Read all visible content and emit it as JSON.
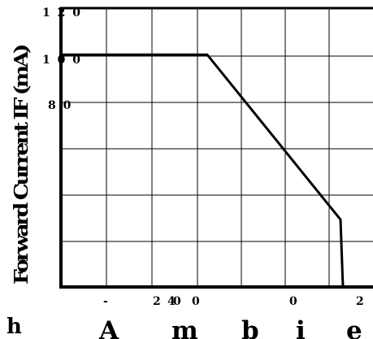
{
  "chart_data": {
    "type": "line",
    "ylabel": "Forward Current IF (mA)",
    "xlabel_fragments": [
      "h",
      "A",
      "m",
      "b",
      "i",
      "e"
    ],
    "ytick_labels": [
      "1 2 0",
      "1 0 0",
      "8 0"
    ],
    "xtick_labels": [
      "-",
      "2",
      "4",
      "0",
      "0",
      "0",
      "2"
    ],
    "series": [
      {
        "values": [
          100,
          100,
          29,
          0
        ]
      }
    ],
    "grid": true,
    "line_color": "#000000",
    "grid_color": "#000000"
  }
}
